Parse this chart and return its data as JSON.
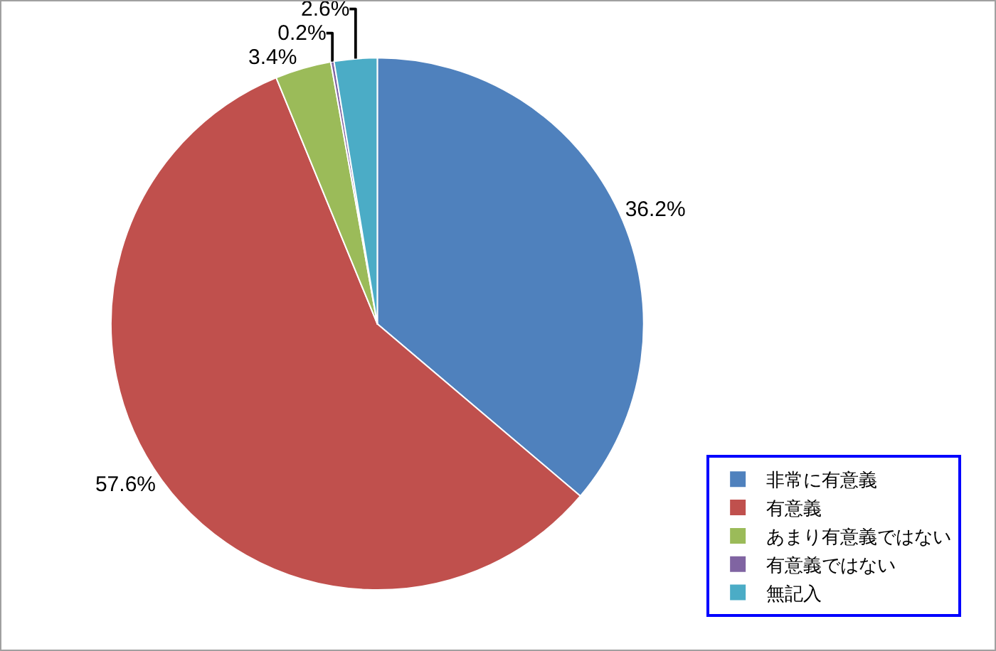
{
  "chart_data": {
    "type": "pie",
    "categories": [
      "非常に有意義",
      "有意義",
      "あまり有意義ではない",
      "有意義ではない",
      "無記入"
    ],
    "values": [
      36.2,
      57.6,
      3.4,
      0.2,
      2.6
    ],
    "value_labels": [
      "36.2%",
      "57.6%",
      "3.4%",
      "0.2%",
      "2.6%"
    ],
    "colors": [
      "#4f81bd",
      "#c0504d",
      "#9bbb59",
      "#8064a2",
      "#4bacc6"
    ],
    "legend": "bottom right"
  }
}
